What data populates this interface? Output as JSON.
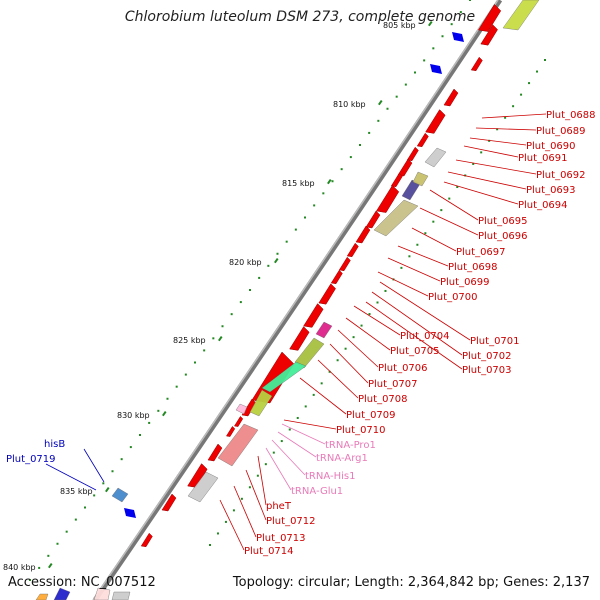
{
  "title": "Chlorobium luteolum DSM 273, complete genome",
  "footer": {
    "accession": "Accession: NC_007512",
    "topology": "Topology: circular; Length: 2,364,842 bp; Genes: 2,137"
  },
  "colors": {
    "backbone": "#888888",
    "gene_forward": "#ee0000",
    "gene_reverse": "#0000ee",
    "label_red": "#cc0000",
    "label_pink": "#e87ab8",
    "label_blue": "#0000bb",
    "tick": "#228822"
  },
  "kbp_labels": [
    {
      "text": "810 kbp"
    },
    {
      "text": "815 kbp"
    },
    {
      "text": "820 kbp"
    },
    {
      "text": "825 kbp"
    },
    {
      "text": "830 kbp"
    },
    {
      "text": "835 kbp"
    },
    {
      "text": "840 kbp"
    },
    {
      "text": "805 kbp"
    }
  ],
  "gene_labels_red": [
    "Plut_0688",
    "Plut_0689",
    "Plut_0690",
    "Plut_0691",
    "Plut_0692",
    "Plut_0693",
    "Plut_0694",
    "Plut_0695",
    "Plut_0696",
    "Plut_0697",
    "Plut_0698",
    "Plut_0699",
    "Plut_0700",
    "Plut_0701",
    "Plut_0702",
    "Plut_0703",
    "Plut_0704",
    "Plut_0705",
    "Plut_0706",
    "Plut_0707",
    "Plut_0708",
    "Plut_0709",
    "Plut_0710",
    "pheT",
    "Plut_0712",
    "Plut_0713",
    "Plut_0714"
  ],
  "gene_labels_pink": [
    "tRNA-Pro1",
    "tRNA-Arg1",
    "tRNA-His1",
    "tRNA-Glu1"
  ],
  "gene_labels_blue": [
    "hisB",
    "Plut_0719"
  ]
}
